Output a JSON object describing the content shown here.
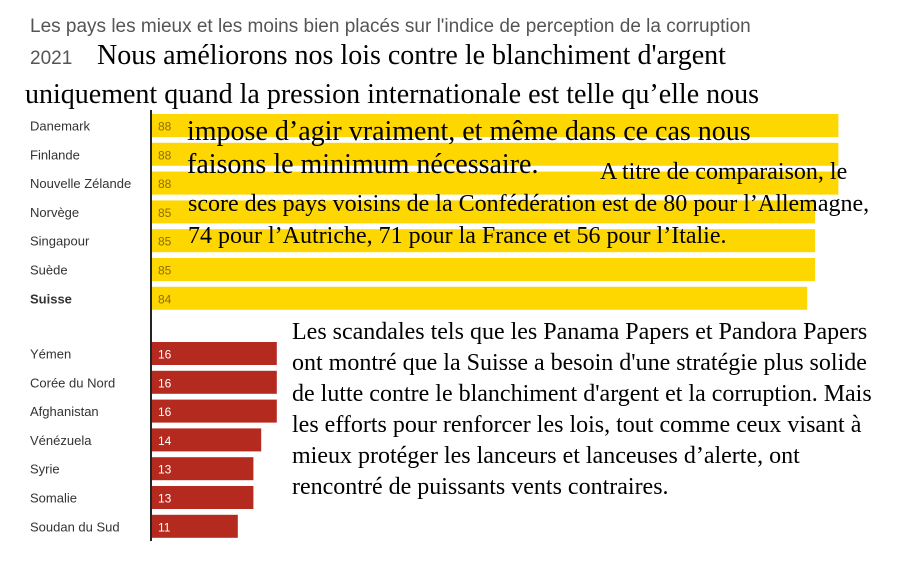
{
  "chart_data": {
    "type": "bar",
    "orientation": "horizontal",
    "title": "Les pays les mieux et les moins bien placés sur l'indice de perception de la corruption",
    "subtitle": "2021",
    "groups": [
      {
        "color": "#FFD700",
        "categories": [
          "Danemark",
          "Finlande",
          "Nouvelle Zélande",
          "Norvège",
          "Singapour",
          "Suède",
          "Suisse"
        ],
        "values": [
          88,
          88,
          88,
          85,
          85,
          85,
          84
        ]
      },
      {
        "color": "#B52A1F",
        "categories": [
          "Yémen",
          "Corée du Nord",
          "Afghanistan",
          "Vénézuela",
          "Syrie",
          "Somalie",
          "Soudan du Sud"
        ],
        "values": [
          16,
          16,
          16,
          14,
          13,
          13,
          11
        ]
      }
    ],
    "highlight_category": "Suisse",
    "xlim": [
      0,
      100
    ],
    "grid": false,
    "legend": "none"
  },
  "overlay_text": {
    "block1_lines": [
      "Nous améliorons nos lois contre le blanchiment d'argent",
      "uniquement quand la pression internationale est telle qu’elle nous",
      "impose d’agir vraiment, et même dans ce cas nous",
      "faisons le minimum nécessaire."
    ],
    "block2": "A titre de comparaison, le score des pays voisins de la Confédération est de 80 pour l’Allemagne, 74 pour l’Autriche, 71 pour la France et 56 pour l’Italie.",
    "block3": "Les scandales tels que les Panama Papers et Pandora Papers ont montré que la Suisse a besoin d'une stratégie plus solide de lutte contre le blanchiment d'argent et la corruption. Mais les efforts pour renforcer les lois, tout comme ceux visant à mieux protéger les lanceurs et lanceuses d’alerte, ont rencontré de puissants vents contraires."
  }
}
